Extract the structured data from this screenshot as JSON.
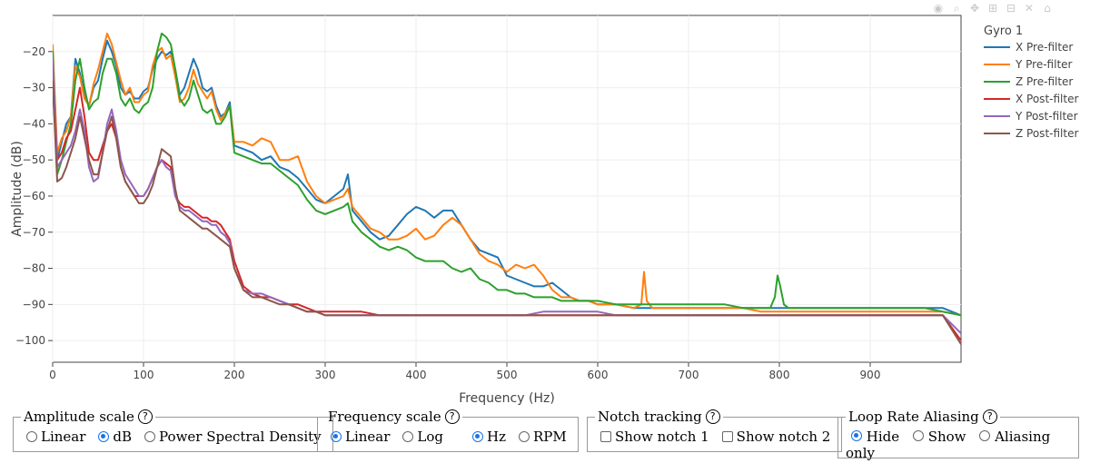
{
  "chart_data": {
    "type": "line",
    "xlabel": "Frequency (Hz)",
    "ylabel": "Amplitude (dB)",
    "xlim": [
      0,
      1000
    ],
    "ylim": [
      -106,
      -10
    ],
    "xticks": [
      0,
      100,
      200,
      300,
      400,
      500,
      600,
      700,
      800,
      900
    ],
    "yticks": [
      -100,
      -90,
      -80,
      -70,
      -60,
      -50,
      -40,
      -30,
      -20
    ],
    "grid": true,
    "legend_title": "Gyro 1",
    "legend_position": "top-right",
    "series": [
      {
        "name": "X Pre-filter",
        "color": "#1f77b4",
        "x": [
          0,
          5,
          10,
          15,
          20,
          25,
          30,
          35,
          40,
          45,
          50,
          55,
          60,
          65,
          70,
          75,
          80,
          85,
          90,
          95,
          100,
          105,
          110,
          115,
          120,
          125,
          130,
          135,
          140,
          145,
          150,
          155,
          160,
          165,
          170,
          175,
          180,
          185,
          190,
          195,
          200,
          210,
          220,
          230,
          240,
          250,
          260,
          270,
          280,
          290,
          300,
          310,
          320,
          325,
          330,
          340,
          350,
          360,
          370,
          380,
          390,
          400,
          410,
          420,
          430,
          440,
          450,
          460,
          470,
          480,
          490,
          500,
          510,
          520,
          530,
          540,
          550,
          560,
          570,
          580,
          590,
          600,
          620,
          640,
          660,
          680,
          700,
          720,
          740,
          760,
          780,
          800,
          820,
          840,
          860,
          880,
          900,
          920,
          940,
          960,
          980,
          1000
        ],
        "y": [
          -30,
          -50,
          -45,
          -40,
          -38,
          -22,
          -26,
          -32,
          -35,
          -30,
          -28,
          -22,
          -17,
          -20,
          -24,
          -30,
          -32,
          -31,
          -33,
          -33,
          -31,
          -30,
          -25,
          -22,
          -20,
          -21,
          -20,
          -25,
          -32,
          -30,
          -26,
          -22,
          -25,
          -30,
          -31,
          -30,
          -35,
          -38,
          -37,
          -34,
          -46,
          -47,
          -48,
          -50,
          -49,
          -52,
          -53,
          -55,
          -58,
          -61,
          -62,
          -60,
          -58,
          -54,
          -64,
          -67,
          -70,
          -72,
          -71,
          -68,
          -65,
          -63,
          -64,
          -66,
          -64,
          -64,
          -68,
          -72,
          -75,
          -76,
          -77,
          -82,
          -83,
          -84,
          -85,
          -85,
          -84,
          -86,
          -88,
          -89,
          -89,
          -90,
          -90,
          -91,
          -91,
          -91,
          -91,
          -91,
          -91,
          -91,
          -91,
          -91,
          -91,
          -91,
          -91,
          -91,
          -91,
          -91,
          -91,
          -91,
          -91,
          -93
        ]
      },
      {
        "name": "Y Pre-filter",
        "color": "#ff7f0e",
        "x": [
          0,
          5,
          10,
          15,
          20,
          25,
          30,
          35,
          40,
          45,
          50,
          55,
          60,
          65,
          70,
          75,
          80,
          85,
          90,
          95,
          100,
          105,
          110,
          115,
          120,
          125,
          130,
          135,
          140,
          145,
          150,
          155,
          160,
          165,
          170,
          175,
          180,
          185,
          190,
          195,
          200,
          210,
          220,
          230,
          240,
          250,
          260,
          270,
          280,
          290,
          300,
          310,
          320,
          325,
          330,
          340,
          350,
          360,
          370,
          380,
          390,
          400,
          410,
          420,
          430,
          440,
          450,
          460,
          470,
          480,
          490,
          500,
          510,
          520,
          530,
          540,
          550,
          560,
          570,
          580,
          590,
          600,
          620,
          640,
          648,
          651,
          654,
          660,
          680,
          700,
          720,
          740,
          760,
          780,
          800,
          820,
          840,
          860,
          880,
          900,
          920,
          940,
          960,
          980,
          1000
        ],
        "y": [
          -18,
          -48,
          -44,
          -42,
          -38,
          -24,
          -27,
          -33,
          -35,
          -29,
          -25,
          -20,
          -15,
          -18,
          -23,
          -28,
          -32,
          -30,
          -34,
          -34,
          -32,
          -31,
          -24,
          -20,
          -19,
          -22,
          -21,
          -27,
          -34,
          -33,
          -30,
          -25,
          -29,
          -31,
          -33,
          -31,
          -36,
          -39,
          -37,
          -35,
          -45,
          -45,
          -46,
          -44,
          -45,
          -50,
          -50,
          -49,
          -56,
          -60,
          -62,
          -61,
          -60,
          -58,
          -63,
          -66,
          -69,
          -70,
          -72,
          -72,
          -71,
          -69,
          -72,
          -71,
          -68,
          -66,
          -68,
          -72,
          -76,
          -78,
          -79,
          -81,
          -79,
          -80,
          -79,
          -82,
          -86,
          -88,
          -88,
          -89,
          -89,
          -90,
          -90,
          -91,
          -90,
          -81,
          -89,
          -91,
          -91,
          -91,
          -91,
          -91,
          -91,
          -92,
          -92,
          -92,
          -92,
          -92,
          -92,
          -92,
          -92,
          -92,
          -92,
          -92,
          -93
        ]
      },
      {
        "name": "Z Pre-filter",
        "color": "#2ca02c",
        "x": [
          0,
          5,
          10,
          15,
          20,
          25,
          30,
          35,
          40,
          45,
          50,
          55,
          60,
          65,
          70,
          75,
          80,
          85,
          90,
          95,
          100,
          105,
          110,
          115,
          120,
          125,
          130,
          135,
          140,
          145,
          150,
          155,
          160,
          165,
          170,
          175,
          180,
          185,
          190,
          195,
          200,
          210,
          220,
          230,
          240,
          250,
          260,
          270,
          280,
          290,
          300,
          310,
          320,
          325,
          330,
          340,
          350,
          360,
          370,
          380,
          390,
          400,
          410,
          420,
          430,
          440,
          450,
          460,
          470,
          480,
          490,
          500,
          510,
          520,
          530,
          540,
          550,
          560,
          570,
          580,
          590,
          600,
          620,
          640,
          660,
          680,
          700,
          720,
          740,
          760,
          780,
          790,
          795,
          798,
          801,
          805,
          810,
          820,
          840,
          860,
          880,
          900,
          920,
          940,
          960,
          980,
          1000
        ],
        "y": [
          -20,
          -54,
          -50,
          -45,
          -40,
          -28,
          -22,
          -30,
          -36,
          -34,
          -33,
          -26,
          -22,
          -22,
          -26,
          -33,
          -35,
          -33,
          -36,
          -37,
          -35,
          -34,
          -30,
          -20,
          -15,
          -16,
          -18,
          -25,
          -33,
          -35,
          -33,
          -28,
          -32,
          -36,
          -37,
          -36,
          -40,
          -40,
          -38,
          -35,
          -48,
          -49,
          -50,
          -51,
          -51,
          -53,
          -55,
          -57,
          -61,
          -64,
          -65,
          -64,
          -63,
          -62,
          -67,
          -70,
          -72,
          -74,
          -75,
          -74,
          -75,
          -77,
          -78,
          -78,
          -78,
          -80,
          -81,
          -80,
          -83,
          -84,
          -86,
          -86,
          -87,
          -87,
          -88,
          -88,
          -88,
          -89,
          -89,
          -89,
          -89,
          -89,
          -90,
          -90,
          -90,
          -90,
          -90,
          -90,
          -90,
          -91,
          -91,
          -91,
          -88,
          -82,
          -85,
          -90,
          -91,
          -91,
          -91,
          -91,
          -91,
          -91,
          -91,
          -91,
          -91,
          -92,
          -93
        ]
      },
      {
        "name": "X Post-filter",
        "color": "#d62728",
        "x": [
          0,
          5,
          10,
          15,
          20,
          25,
          30,
          35,
          40,
          45,
          50,
          55,
          60,
          65,
          70,
          75,
          80,
          85,
          90,
          95,
          100,
          105,
          110,
          115,
          120,
          125,
          130,
          135,
          140,
          145,
          150,
          155,
          160,
          165,
          170,
          175,
          180,
          185,
          190,
          195,
          200,
          210,
          220,
          230,
          240,
          250,
          260,
          270,
          280,
          290,
          300,
          320,
          340,
          360,
          380,
          400,
          420,
          440,
          460,
          480,
          500,
          520,
          540,
          560,
          580,
          600,
          620,
          640,
          660,
          680,
          700,
          720,
          740,
          760,
          780,
          800,
          820,
          840,
          860,
          880,
          900,
          920,
          940,
          960,
          980,
          1000
        ],
        "y": [
          -25,
          -50,
          -48,
          -44,
          -42,
          -36,
          -30,
          -38,
          -48,
          -50,
          -50,
          -46,
          -42,
          -40,
          -44,
          -52,
          -56,
          -58,
          -60,
          -60,
          -60,
          -58,
          -55,
          -52,
          -50,
          -51,
          -52,
          -60,
          -62,
          -63,
          -63,
          -64,
          -65,
          -66,
          -66,
          -67,
          -67,
          -68,
          -70,
          -72,
          -78,
          -85,
          -87,
          -88,
          -88,
          -89,
          -90,
          -90,
          -91,
          -92,
          -92,
          -92,
          -92,
          -93,
          -93,
          -93,
          -93,
          -93,
          -93,
          -93,
          -93,
          -93,
          -93,
          -93,
          -93,
          -93,
          -93,
          -93,
          -93,
          -93,
          -93,
          -93,
          -93,
          -93,
          -93,
          -93,
          -93,
          -93,
          -93,
          -93,
          -93,
          -93,
          -93,
          -93,
          -93,
          -100
        ]
      },
      {
        "name": "Y Post-filter",
        "color": "#9467bd",
        "x": [
          0,
          5,
          10,
          15,
          20,
          25,
          30,
          35,
          40,
          45,
          50,
          55,
          60,
          65,
          70,
          75,
          80,
          85,
          90,
          95,
          100,
          105,
          110,
          115,
          120,
          125,
          130,
          135,
          140,
          145,
          150,
          155,
          160,
          165,
          170,
          175,
          180,
          185,
          190,
          195,
          200,
          210,
          220,
          230,
          240,
          250,
          260,
          270,
          280,
          290,
          300,
          320,
          340,
          360,
          380,
          400,
          420,
          440,
          460,
          480,
          500,
          520,
          540,
          560,
          580,
          600,
          620,
          640,
          660,
          680,
          700,
          720,
          740,
          760,
          780,
          800,
          820,
          840,
          860,
          880,
          900,
          920,
          940,
          960,
          980,
          1000
        ],
        "y": [
          -22,
          -52,
          -50,
          -48,
          -46,
          -42,
          -36,
          -42,
          -52,
          -56,
          -55,
          -48,
          -40,
          -36,
          -42,
          -50,
          -54,
          -56,
          -58,
          -60,
          -60,
          -58,
          -55,
          -52,
          -50,
          -52,
          -53,
          -60,
          -63,
          -64,
          -64,
          -65,
          -66,
          -67,
          -67,
          -68,
          -68,
          -70,
          -71,
          -73,
          -80,
          -86,
          -87,
          -87,
          -88,
          -89,
          -90,
          -91,
          -92,
          -92,
          -93,
          -93,
          -93,
          -93,
          -93,
          -93,
          -93,
          -93,
          -93,
          -93,
          -93,
          -93,
          -92,
          -92,
          -92,
          -92,
          -93,
          -93,
          -93,
          -93,
          -93,
          -93,
          -93,
          -93,
          -93,
          -93,
          -93,
          -93,
          -93,
          -93,
          -93,
          -93,
          -93,
          -93,
          -93,
          -98
        ]
      },
      {
        "name": "Z Post-filter",
        "color": "#8c564b",
        "x": [
          0,
          5,
          10,
          15,
          20,
          25,
          30,
          35,
          40,
          45,
          50,
          55,
          60,
          65,
          70,
          75,
          80,
          85,
          90,
          95,
          100,
          105,
          110,
          115,
          120,
          125,
          130,
          135,
          140,
          145,
          150,
          155,
          160,
          165,
          170,
          175,
          180,
          185,
          190,
          195,
          200,
          210,
          220,
          230,
          240,
          250,
          260,
          270,
          280,
          290,
          300,
          320,
          340,
          360,
          380,
          400,
          420,
          440,
          460,
          480,
          500,
          520,
          540,
          560,
          580,
          600,
          620,
          640,
          660,
          680,
          700,
          720,
          740,
          760,
          780,
          800,
          820,
          840,
          860,
          880,
          900,
          920,
          940,
          960,
          980,
          1000
        ],
        "y": [
          -28,
          -56,
          -55,
          -52,
          -48,
          -44,
          -38,
          -44,
          -50,
          -54,
          -54,
          -48,
          -42,
          -38,
          -44,
          -52,
          -56,
          -58,
          -60,
          -62,
          -62,
          -60,
          -57,
          -52,
          -47,
          -48,
          -49,
          -58,
          -64,
          -65,
          -66,
          -67,
          -68,
          -69,
          -69,
          -70,
          -71,
          -72,
          -73,
          -74,
          -80,
          -86,
          -88,
          -88,
          -89,
          -90,
          -90,
          -91,
          -92,
          -92,
          -93,
          -93,
          -93,
          -93,
          -93,
          -93,
          -93,
          -93,
          -93,
          -93,
          -93,
          -93,
          -93,
          -93,
          -93,
          -93,
          -93,
          -93,
          -93,
          -93,
          -93,
          -93,
          -93,
          -93,
          -93,
          -93,
          -93,
          -93,
          -93,
          -93,
          -93,
          -93,
          -93,
          -93,
          -93,
          -101
        ]
      }
    ]
  },
  "controls": {
    "amplitude": {
      "title": "Amplitude scale",
      "options": [
        {
          "label": "Linear",
          "selected": false
        },
        {
          "label": "dB",
          "selected": true
        },
        {
          "label": "Power Spectral Density",
          "selected": false
        }
      ]
    },
    "frequency": {
      "title": "Frequency scale",
      "options": [
        {
          "label": "Linear",
          "selected": true
        },
        {
          "label": "Log",
          "selected": false
        }
      ],
      "unit_options": [
        {
          "label": "Hz",
          "selected": true
        },
        {
          "label": "RPM",
          "selected": false
        }
      ]
    },
    "notch": {
      "title": "Notch tracking",
      "options": [
        {
          "label": "Show notch 1",
          "checked": false
        },
        {
          "label": "Show notch 2",
          "checked": false
        }
      ]
    },
    "aliasing": {
      "title": "Loop Rate Aliasing",
      "options": [
        {
          "label": "Hide",
          "selected": true
        },
        {
          "label": "Show",
          "selected": false
        },
        {
          "label": "Aliasing only",
          "selected": false
        }
      ]
    },
    "help_glyph": "?"
  },
  "modebar_icons": [
    "camera-icon",
    "zoom-icon",
    "pan-icon",
    "zoom-in-icon",
    "zoom-out-icon",
    "autoscale-icon",
    "home-icon"
  ]
}
